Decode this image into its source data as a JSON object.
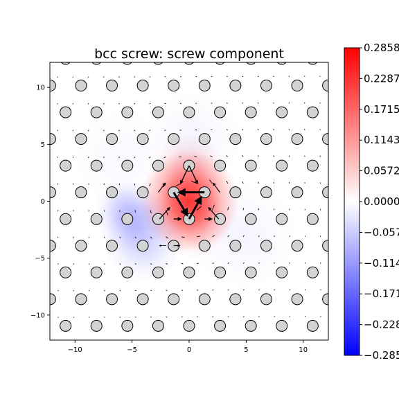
{
  "chart_data": {
    "type": "scatter",
    "title": "bcc screw: screw component",
    "xlabel": "",
    "ylabel": "",
    "xlim": [
      -12.2,
      12.2
    ],
    "ylim": [
      -12.2,
      12.2
    ],
    "xticks": [
      -10,
      -5,
      0,
      5,
      10
    ],
    "yticks": [
      -10,
      -5,
      0,
      5,
      10
    ],
    "xtick_labels": [
      "−10",
      "−5",
      "0",
      "5",
      "10"
    ],
    "ytick_labels": [
      "−10",
      "−5",
      "0",
      "5",
      "10"
    ],
    "grid": false,
    "lattice": {
      "row_spacing": 2.345,
      "atom_spacing": 2.706,
      "row_offset": 1.353,
      "row_index_range": [
        -5,
        5
      ],
      "column_index_range": [
        -6,
        6
      ]
    },
    "atom_color": "#d3d3d3",
    "core_displacements": [
      {
        "from": [
          1.35,
          0.78
        ],
        "to": [
          -0.9,
          0.78
        ],
        "weight": 3.0
      },
      {
        "from": [
          0.0,
          -1.56
        ],
        "to": [
          1.05,
          0.35
        ],
        "weight": 3.0
      },
      {
        "from": [
          -1.35,
          0.78
        ],
        "to": [
          -0.15,
          -1.25
        ],
        "weight": 3.0
      },
      {
        "from": [
          0.0,
          3.12
        ],
        "to": [
          -0.75,
          1.55
        ],
        "weight": 1.4
      },
      {
        "from": [
          0.0,
          3.12
        ],
        "to": [
          0.75,
          1.55
        ],
        "weight": 1.4
      },
      {
        "from": [
          -2.7,
          0.78
        ],
        "to": [
          -2.1,
          1.6
        ],
        "weight": 1.2
      },
      {
        "from": [
          2.7,
          0.78
        ],
        "to": [
          2.1,
          1.6
        ],
        "weight": 1.2
      },
      {
        "from": [
          -2.6,
          -1.56
        ],
        "to": [
          -1.7,
          -0.55
        ],
        "weight": 1.3
      },
      {
        "from": [
          2.6,
          -1.56
        ],
        "to": [
          1.7,
          -0.55
        ],
        "weight": 1.3
      },
      {
        "from": [
          -1.35,
          -1.56
        ],
        "to": [
          -0.7,
          -1.56
        ],
        "weight": 1.5
      },
      {
        "from": [
          1.35,
          -1.56
        ],
        "to": [
          2.0,
          -1.56
        ],
        "weight": 1.5
      },
      {
        "from": [
          -1.35,
          -3.9
        ],
        "to": [
          -0.8,
          -3.9
        ],
        "weight": 1.0
      },
      {
        "from": [
          -2.0,
          -3.9
        ],
        "to": [
          -2.6,
          -3.9
        ],
        "weight": 0.8
      }
    ],
    "colorbar": {
      "min": -0.2858,
      "max": 0.2858,
      "ticks": [
        0.2858,
        0.2287,
        0.1715,
        0.1143,
        0.0572,
        0.0,
        -0.0572,
        -0.1143,
        -0.1715,
        -0.2287,
        -0.2858
      ],
      "tick_labels": [
        "0.2858",
        "0.2287",
        "0.1715",
        "0.1143",
        "0.0572",
        "0.0000",
        "−0.0572",
        "−0.1143",
        "−0.1715",
        "−0.2287",
        "−0.2858"
      ],
      "colors": [
        "#0000ff",
        "#ffffff",
        "#ff0000"
      ]
    },
    "field_blobs": [
      {
        "center": [
          0.0,
          0.0
        ],
        "sigma": 2.0,
        "value": 0.22
      },
      {
        "center": [
          0.0,
          2.6
        ],
        "sigma": 1.5,
        "value": 0.06
      },
      {
        "center": [
          0.3,
          -1.8
        ],
        "sigma": 1.5,
        "value": 0.05
      },
      {
        "center": [
          -5.0,
          -1.5
        ],
        "sigma": 1.4,
        "value": -0.06
      },
      {
        "center": [
          -4.0,
          -3.5
        ],
        "sigma": 1.6,
        "value": -0.05
      },
      {
        "center": [
          -5.7,
          -0.5
        ],
        "sigma": 1.2,
        "value": -0.03
      },
      {
        "center": [
          0.3,
          5.5
        ],
        "sigma": 2.0,
        "value": -0.012
      },
      {
        "center": [
          4.8,
          -3.0
        ],
        "sigma": 2.2,
        "value": -0.012
      },
      {
        "center": [
          -6.0,
          4.0
        ],
        "sigma": 2.0,
        "value": -0.008
      }
    ]
  }
}
